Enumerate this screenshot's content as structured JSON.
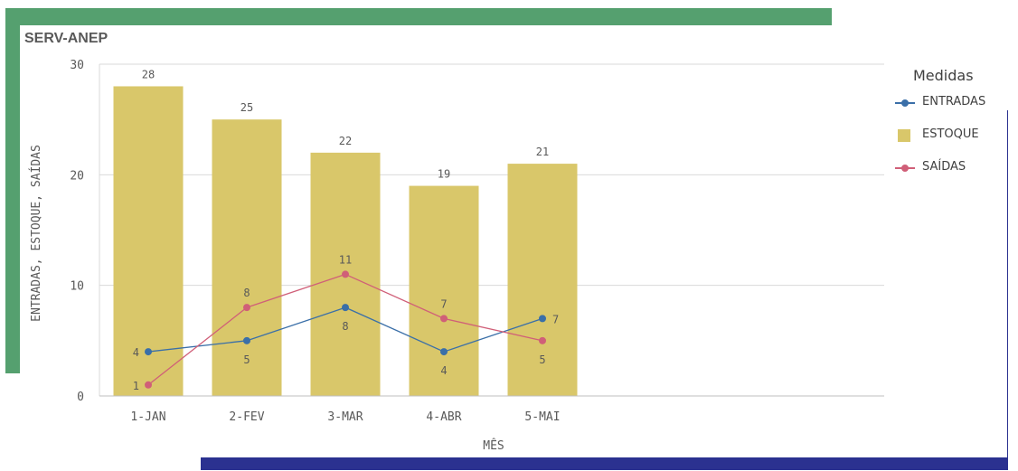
{
  "chart_data": {
    "type": "bar",
    "title": "SERV-ANEP",
    "xlabel": "MÊS",
    "ylabel": "ENTRADAS, ESTOQUE, SAÍDAS",
    "ylim": [
      0,
      30
    ],
    "yticks": [
      "0",
      "10",
      "20",
      "30"
    ],
    "categories": [
      "1-JAN",
      "2-FEV",
      "3-MAR",
      "4-ABR",
      "5-MAI"
    ],
    "grid": true,
    "legend_title": "Medidas",
    "legend_position": "right",
    "series": [
      {
        "name": "ENTRADAS",
        "kind": "line",
        "color": "#3a6fa8",
        "values": [
          4,
          5,
          8,
          4,
          7
        ]
      },
      {
        "name": "ESTOQUE",
        "kind": "bar",
        "color": "#d9c76a",
        "values": [
          28,
          25,
          22,
          19,
          21
        ]
      },
      {
        "name": "SAÍDAS",
        "kind": "line",
        "color": "#d05f78",
        "values": [
          1,
          8,
          11,
          7,
          5
        ]
      }
    ]
  }
}
